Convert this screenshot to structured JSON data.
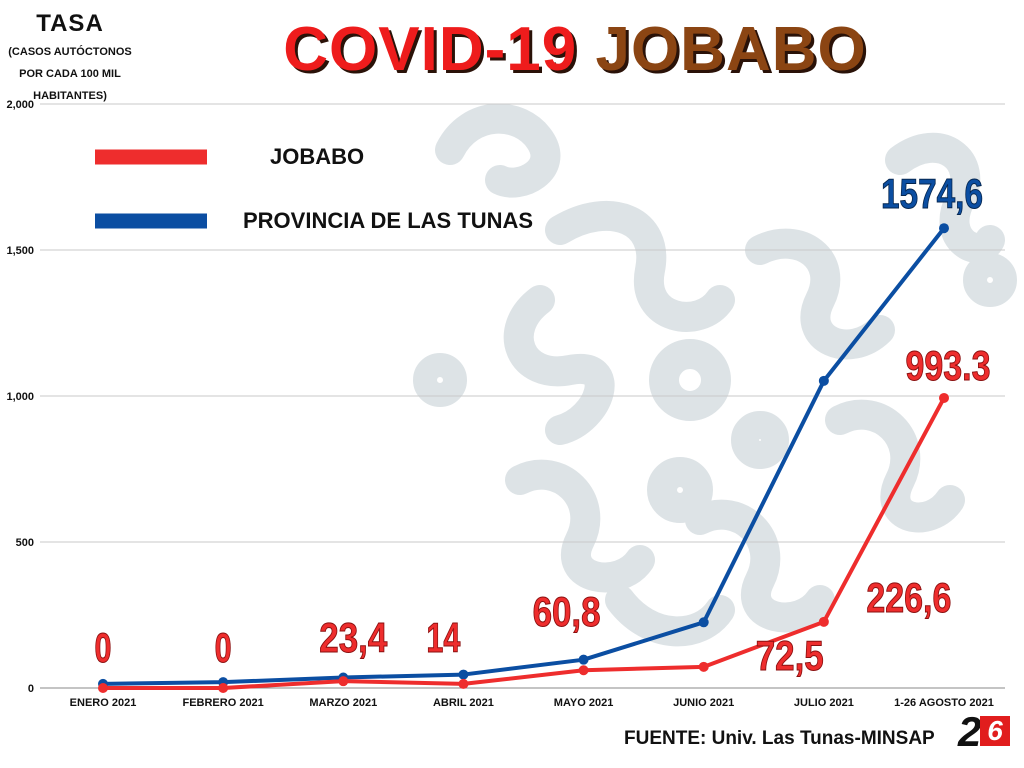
{
  "title": {
    "part1": "COVID-19",
    "part2": "JOBABO"
  },
  "yaxis": {
    "title": "TASA",
    "subtitle_lines": [
      "(CASOS AUTÓCTONOS",
      "POR CADA 100 MIL",
      "HABITANTES)"
    ]
  },
  "legend": [
    {
      "label": "JOBABO",
      "color": "#ee2d2d"
    },
    {
      "label": "PROVINCIA DE LAS TUNAS",
      "color": "#0b4ea2"
    }
  ],
  "source": "FUENTE: Univ. Las Tunas-MINSAP",
  "logo": {
    "digit1": "2",
    "digit2": "6"
  },
  "chart_data": {
    "type": "line",
    "categories": [
      "ENERO 2021",
      "FEBRERO 2021",
      "MARZO 2021",
      "ABRIL 2021",
      "MAYO 2021",
      "JUNIO 2021",
      "JULIO 2021",
      "1-26 AGOSTO 2021"
    ],
    "ylim": [
      0,
      2000
    ],
    "yticks": [
      0,
      500,
      1000,
      1500,
      2000
    ],
    "ytick_labels": [
      "0",
      "500",
      "1,000",
      "1,500",
      "2,000"
    ],
    "grid": true,
    "legend_position": "top-left",
    "series": [
      {
        "name": "JOBABO",
        "color": "#ee2d2d",
        "values": [
          0,
          0,
          23.4,
          14,
          60.8,
          72.5,
          226.6,
          993.3
        ],
        "labels": [
          "0",
          "0",
          "23,4",
          "14",
          "60,8",
          "72,5",
          "226,6",
          "993.3"
        ]
      },
      {
        "name": "PROVINCIA DE LAS TUNAS",
        "color": "#0b4ea2",
        "values": [
          14,
          20,
          36,
          46,
          97,
          225,
          1052,
          1574.6
        ],
        "labels": [
          "",
          "",
          "",
          "",
          "",
          "",
          "",
          "1574,6"
        ]
      }
    ]
  }
}
